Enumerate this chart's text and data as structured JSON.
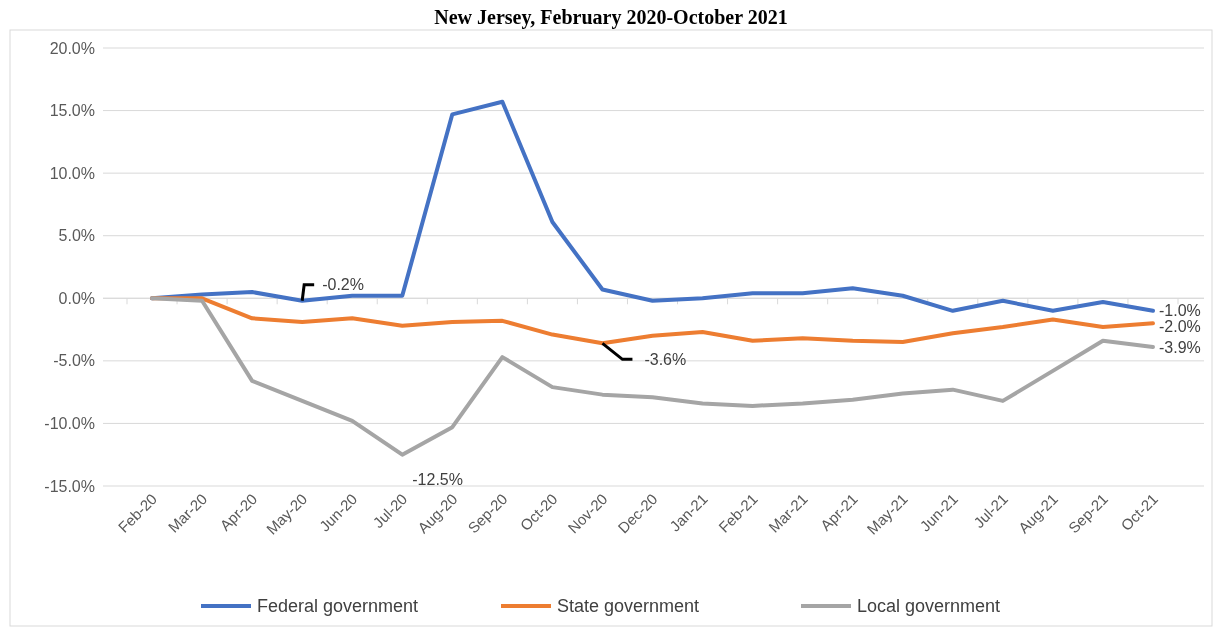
{
  "chart_data": {
    "type": "line",
    "title": "New Jersey, February 2020-October 2021",
    "categories": [
      "Feb-20",
      "Mar-20",
      "Apr-20",
      "May-20",
      "Jun-20",
      "Jul-20",
      "Aug-20",
      "Sep-20",
      "Oct-20",
      "Nov-20",
      "Dec-20",
      "Jan-21",
      "Feb-21",
      "Mar-21",
      "Apr-21",
      "May-21",
      "Jun-21",
      "Jul-21",
      "Aug-21",
      "Sep-21",
      "Oct-21"
    ],
    "series": [
      {
        "name": "Federal government",
        "color": "#4472c4",
        "values": [
          0,
          0.3,
          0.5,
          -0.2,
          0.2,
          0.2,
          14.7,
          15.7,
          6.1,
          0.7,
          -0.2,
          0,
          0.4,
          0.4,
          0.8,
          0.2,
          -1.0,
          -0.2,
          -1.0,
          -0.3,
          -1.0
        ],
        "value_labels": [
          null,
          null,
          null,
          "-0.2%",
          null,
          null,
          null,
          null,
          null,
          null,
          null,
          null,
          null,
          null,
          null,
          null,
          null,
          null,
          null,
          null,
          "-1.0%"
        ]
      },
      {
        "name": "State government",
        "color": "#ed7d31",
        "values": [
          0,
          0,
          -1.6,
          -1.9,
          -1.6,
          -2.2,
          -1.9,
          -1.8,
          -2.9,
          -3.6,
          -3.0,
          -2.7,
          -3.4,
          -3.2,
          -3.4,
          -3.5,
          -2.8,
          -2.3,
          -1.7,
          -2.3,
          -2.0
        ],
        "value_labels": [
          null,
          null,
          null,
          null,
          null,
          null,
          null,
          null,
          null,
          "-3.6%",
          null,
          null,
          null,
          null,
          null,
          null,
          null,
          null,
          null,
          null,
          "-2.0%"
        ]
      },
      {
        "name": "Local government",
        "color": "#a5a5a5",
        "values": [
          0,
          -0.2,
          -6.6,
          -8.2,
          -9.8,
          -12.5,
          -10.3,
          -4.7,
          -7.1,
          -7.7,
          -7.9,
          -8.4,
          -8.6,
          -8.4,
          -8.1,
          -7.6,
          -7.3,
          -8.2,
          -5.8,
          -3.4,
          -3.9
        ],
        "value_labels": [
          null,
          null,
          null,
          null,
          null,
          "-12.5%",
          null,
          null,
          null,
          null,
          null,
          null,
          null,
          null,
          null,
          null,
          null,
          null,
          null,
          null,
          "-3.9%"
        ]
      }
    ],
    "ylim": [
      -15,
      20
    ],
    "yticks": [
      {
        "value": -15,
        "label": "-15.0%"
      },
      {
        "value": -10,
        "label": "-10.0%"
      },
      {
        "value": -5,
        "label": "-5.0%"
      },
      {
        "value": 0,
        "label": "0.0%"
      },
      {
        "value": 5,
        "label": "5.0%"
      },
      {
        "value": 10,
        "label": "10.0%"
      },
      {
        "value": 15,
        "label": "15.0%"
      },
      {
        "value": 20,
        "label": "20.0%"
      }
    ],
    "grid": "y",
    "legend": "bottom",
    "marker": "none",
    "line_style": "solid"
  }
}
